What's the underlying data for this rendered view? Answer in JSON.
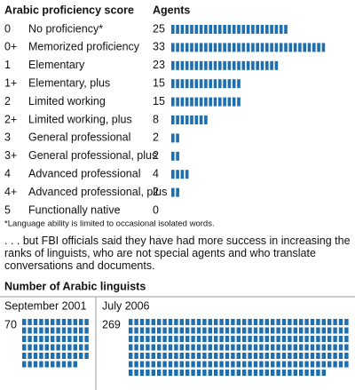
{
  "chart_data": [
    {
      "type": "pictogram",
      "title": "Arabic proficiency score",
      "value_header": "Agents",
      "codes": [
        "0",
        "0+",
        "1",
        "1+",
        "2",
        "2+",
        "3",
        "3+",
        "4",
        "4+",
        "5"
      ],
      "categories": [
        "No proficiency*",
        "Memorized proficiency",
        "Elementary",
        "Elementary, plus",
        "Limited working",
        "Limited working, plus",
        "General professional",
        "General professional, plus",
        "Advanced professional",
        "Advanced professional, plus",
        "Functionally native"
      ],
      "values": [
        25,
        33,
        23,
        15,
        15,
        8,
        2,
        2,
        4,
        2,
        0
      ],
      "color": "#1f6fae",
      "footnote": "*Language ability is limited to occasional isolated words."
    },
    {
      "type": "pictogram",
      "title": "Number of Arabic linguists",
      "categories": [
        "September 2001",
        "July 2006"
      ],
      "values": [
        70,
        269
      ],
      "color": "#1f6fae"
    }
  ],
  "text": ". . . but FBI officials said they have had more success in increasing the ranks of linguists, who are not special agents and who translate conversations and documents."
}
